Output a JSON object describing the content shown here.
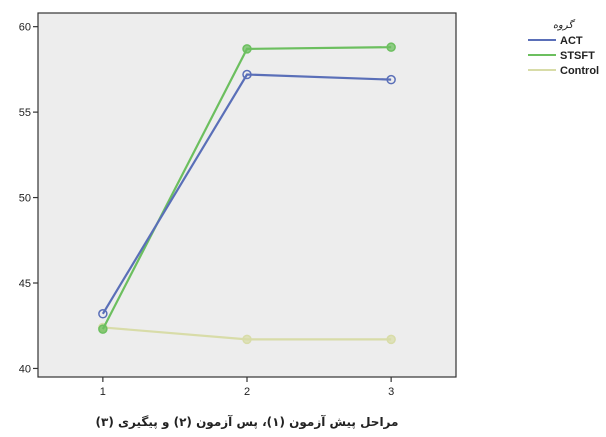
{
  "chart_data": {
    "type": "line",
    "title": "",
    "xlabel": "مراحل پیش آزمون (۱)، پس آزمون (۲) و پیگیری (۳)",
    "ylabel": "",
    "x": [
      1,
      2,
      3
    ],
    "xticks": [
      "1",
      "2",
      "3"
    ],
    "yticks": [
      40,
      45,
      50,
      55,
      60
    ],
    "ylim": [
      39.5,
      60.8
    ],
    "grid": false,
    "legend": {
      "title": "گروه",
      "placement": "right"
    },
    "series": [
      {
        "name": "ACT",
        "values": [
          43.2,
          57.2,
          56.9
        ],
        "color": "#5a6fb8"
      },
      {
        "name": "STSFT",
        "values": [
          42.3,
          58.7,
          58.8
        ],
        "color": "#6cbf5f"
      },
      {
        "name": "Control",
        "values": [
          42.4,
          41.7,
          41.7
        ],
        "color": "#d8dca8"
      }
    ],
    "plot_background": "#ededed",
    "axis_color": "#333333"
  }
}
